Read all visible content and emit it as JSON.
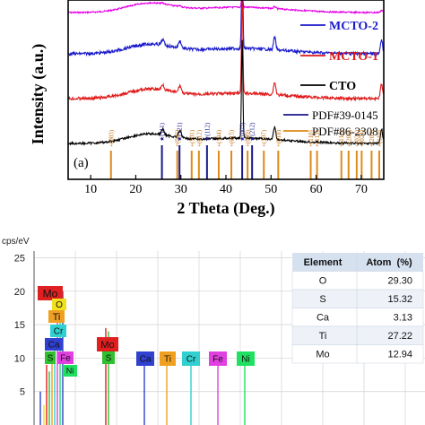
{
  "xrd": {
    "panel_label": "(a)",
    "xlabel": "2 Theta (Deg.)",
    "ylabel": "Intensity (a.u.)",
    "xlim": [
      5,
      75
    ],
    "x_ticks": [
      10,
      20,
      30,
      40,
      50,
      60,
      70
    ],
    "series": [
      {
        "name": "",
        "color": "#e600e6",
        "base": 0.07,
        "noise": 0.004
      },
      {
        "name": "MCTO-2",
        "color": "#1a1acc",
        "base": 0.3,
        "noise": 0.008
      },
      {
        "name": "MCTO-1",
        "color": "#e01818",
        "base": 0.55,
        "noise": 0.008
      },
      {
        "name": "CTO",
        "color": "#000000",
        "base": 0.8,
        "noise": 0.006
      }
    ],
    "reference_legend": [
      {
        "name": "PDF#39-0145",
        "color": "#1a1a8c"
      },
      {
        "name": "PDF#86-2308",
        "color": "#e08a1a"
      }
    ],
    "peaks_navy": [
      {
        "x": 25.8,
        "label": "(111)"
      },
      {
        "x": 29.7,
        "label": "(121)"
      },
      {
        "x": 35.8,
        "label": "(112)"
      },
      {
        "x": 43.6,
        "label": "(003)"
      },
      {
        "x": 45.8,
        "label": "(212)"
      }
    ],
    "peaks_orange": [
      {
        "x": 14.5,
        "label": "(003)"
      },
      {
        "x": 29.2,
        "label": "(006)"
      },
      {
        "x": 32.4,
        "label": "(101)"
      },
      {
        "x": 34.0,
        "label": "(012)"
      },
      {
        "x": 38.4,
        "label": "(104)"
      },
      {
        "x": 41.2,
        "label": "(015)"
      },
      {
        "x": 44.8,
        "label": "(009)"
      },
      {
        "x": 48.4,
        "label": "(107)"
      },
      {
        "x": 51.6,
        "label": "(018)"
      },
      {
        "x": 58.8,
        "label": "(110)"
      },
      {
        "x": 60.2,
        "label": "(113)"
      },
      {
        "x": 65.6,
        "label": "(116)"
      },
      {
        "x": 67.2,
        "label": "(202)"
      },
      {
        "x": 69.0,
        "label": "(021)"
      },
      {
        "x": 70.1,
        "label": "(024)"
      },
      {
        "x": 72.3,
        "label": "(205)"
      },
      {
        "x": 74.0,
        "label": "(119)"
      }
    ]
  },
  "eds": {
    "unit_label": "cps/eV",
    "y_ticks": [
      5,
      10,
      15,
      20,
      25
    ],
    "ylim": [
      0,
      26
    ],
    "xlim": [
      0,
      10
    ],
    "elements_left": [
      {
        "label": "Mo",
        "color": "#e02020"
      },
      {
        "label": "O",
        "color": "#f0e020"
      },
      {
        "label": "Ti",
        "color": "#f0a020"
      },
      {
        "label": "Cr",
        "color": "#30d0d0"
      },
      {
        "label": "Ca",
        "color": "#3040d0"
      },
      {
        "label": "S",
        "color": "#30c030"
      },
      {
        "label": "Fe",
        "color": "#e040e0"
      },
      {
        "label": "Ni",
        "color": "#20e060"
      }
    ],
    "elements_right": [
      {
        "label": "Mo",
        "color": "#e02020"
      },
      {
        "label": "S",
        "color": "#30c030"
      },
      {
        "label": "Ca",
        "color": "#3040d0"
      },
      {
        "label": "Ti",
        "color": "#f0a020"
      },
      {
        "label": "Cr",
        "color": "#30d0d0"
      },
      {
        "label": "Fe",
        "color": "#e040e0"
      },
      {
        "label": "Ni",
        "color": "#20e060"
      }
    ],
    "table": {
      "headers": [
        "Element",
        "Atom  (%)"
      ],
      "rows": [
        [
          "O",
          "29.30"
        ],
        [
          "S",
          "15.32"
        ],
        [
          "Ca",
          "3.13"
        ],
        [
          "Ti",
          "27.22"
        ],
        [
          "Mo",
          "12.94"
        ]
      ]
    }
  },
  "chart_data": [
    {
      "type": "line",
      "title": "",
      "xlabel": "2 Theta (Deg.)",
      "ylabel": "Intensity (a.u.)",
      "xlim": [
        5,
        75
      ],
      "legend": [
        "MCTO-2",
        "MCTO-1",
        "CTO",
        "PDF#39-0145",
        "PDF#86-2308"
      ],
      "main_peaks_2theta": [
        26.0,
        29.8,
        43.6,
        50.8,
        74.5
      ],
      "reference_peaks_PDF#39-0145": [
        25.8,
        29.7,
        35.8,
        43.6,
        45.8
      ],
      "reference_peaks_PDF#86-2308": [
        14.5,
        29.2,
        32.4,
        34.0,
        38.4,
        41.2,
        44.8,
        48.4,
        51.6,
        58.8,
        60.2,
        65.6,
        67.2,
        69.0,
        70.1,
        72.3,
        74.0
      ]
    },
    {
      "type": "table",
      "headers": [
        "Element",
        "Atom (%)"
      ],
      "rows": [
        [
          "O",
          29.3
        ],
        [
          "S",
          15.32
        ],
        [
          "Ca",
          3.13
        ],
        [
          "Ti",
          27.22
        ],
        [
          "Mo",
          12.94
        ]
      ]
    }
  ]
}
